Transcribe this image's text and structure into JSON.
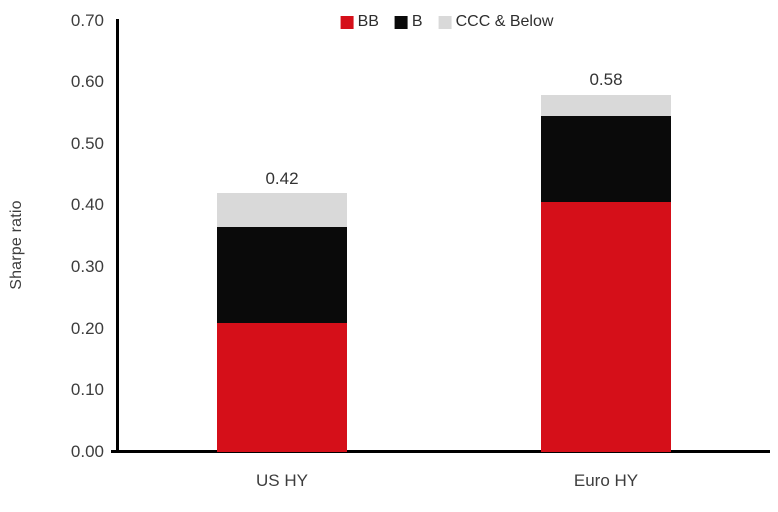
{
  "chart_data": {
    "type": "bar",
    "stacked": true,
    "title": "",
    "ylabel": "Sharpe ratio",
    "xlabel": "",
    "ylim": [
      0,
      0.7
    ],
    "ytick_step": 0.1,
    "yticks": [
      0.0,
      0.1,
      0.2,
      0.3,
      0.4,
      0.5,
      0.6,
      0.7
    ],
    "ytick_labels": [
      "0.00",
      "0.10",
      "0.20",
      "0.30",
      "0.40",
      "0.50",
      "0.60",
      "0.70"
    ],
    "grid": false,
    "legend_position": "top-center",
    "categories": [
      "US HY",
      "Euro HY"
    ],
    "series": [
      {
        "name": "BB",
        "color": "#d50f19",
        "values": [
          0.21,
          0.405
        ]
      },
      {
        "name": "B",
        "color": "#0a0a0a",
        "values": [
          0.155,
          0.14
        ]
      },
      {
        "name": "CCC & Below",
        "color": "#d9d9d9",
        "values": [
          0.055,
          0.035
        ]
      }
    ],
    "bar_total_labels": [
      "0.42",
      "0.58"
    ],
    "axis_color": "#000000",
    "text_color": "#3d3d3d"
  }
}
